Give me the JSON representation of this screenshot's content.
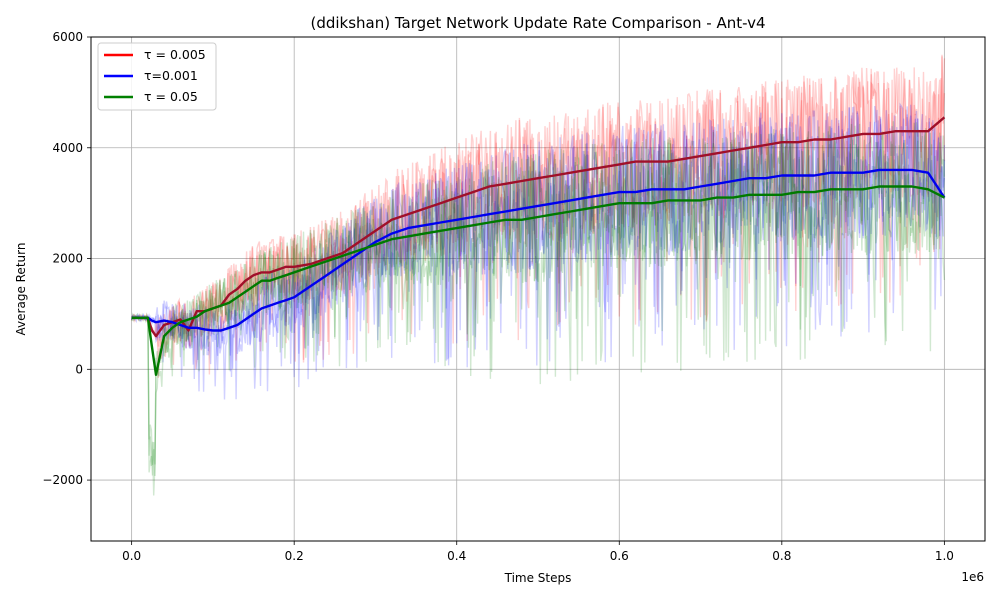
{
  "chart_data": {
    "type": "line",
    "title": "(ddikshan) Target Network Update Rate Comparison - Ant-v4",
    "xlabel": "Time Steps",
    "ylabel": "Average Return",
    "x_offset_label": "1e6",
    "xlim": [
      -0.05,
      1.05
    ],
    "ylim": [
      -3100,
      6000
    ],
    "x_ticks": [
      0.0,
      0.2,
      0.4,
      0.6,
      0.8,
      1.0
    ],
    "x_tick_labels": [
      "0.0",
      "0.2",
      "0.4",
      "0.6",
      "0.8",
      "1.0"
    ],
    "y_ticks": [
      -2000,
      0,
      2000,
      4000,
      6000
    ],
    "y_tick_labels": [
      "−2000",
      "0",
      "2000",
      "4000",
      "6000"
    ],
    "grid": true,
    "legend_position": "top-left",
    "x": [
      0.0,
      0.02,
      0.025,
      0.03,
      0.04,
      0.05,
      0.06,
      0.07,
      0.08,
      0.09,
      0.1,
      0.11,
      0.12,
      0.13,
      0.14,
      0.15,
      0.16,
      0.17,
      0.18,
      0.19,
      0.2,
      0.22,
      0.24,
      0.26,
      0.28,
      0.3,
      0.32,
      0.34,
      0.36,
      0.38,
      0.4,
      0.42,
      0.44,
      0.46,
      0.48,
      0.5,
      0.52,
      0.54,
      0.56,
      0.58,
      0.6,
      0.62,
      0.64,
      0.66,
      0.68,
      0.7,
      0.72,
      0.74,
      0.76,
      0.78,
      0.8,
      0.82,
      0.84,
      0.86,
      0.88,
      0.9,
      0.92,
      0.94,
      0.96,
      0.98,
      1.0
    ],
    "series": [
      {
        "name": "τ = 0.005",
        "color": "#ff0000",
        "mean_color": "#a0102a",
        "y": [
          930,
          930,
          700,
          600,
          800,
          850,
          900,
          700,
          1050,
          1050,
          1100,
          1150,
          1350,
          1450,
          1600,
          1700,
          1750,
          1750,
          1800,
          1850,
          1850,
          1900,
          2000,
          2100,
          2300,
          2500,
          2700,
          2800,
          2900,
          3000,
          3100,
          3200,
          3300,
          3350,
          3400,
          3450,
          3500,
          3550,
          3600,
          3650,
          3700,
          3750,
          3750,
          3750,
          3800,
          3850,
          3900,
          3950,
          4000,
          4050,
          4100,
          4100,
          4150,
          4150,
          4200,
          4250,
          4250,
          4300,
          4300,
          4300,
          4550
        ]
      },
      {
        "name": "τ=0.001",
        "color": "#0000ff",
        "mean_color": "#0000ee",
        "y": [
          930,
          930,
          880,
          850,
          880,
          850,
          800,
          750,
          750,
          720,
          700,
          700,
          750,
          800,
          900,
          1000,
          1100,
          1150,
          1200,
          1250,
          1300,
          1500,
          1700,
          1900,
          2100,
          2300,
          2450,
          2550,
          2600,
          2650,
          2700,
          2750,
          2800,
          2850,
          2900,
          2950,
          3000,
          3050,
          3100,
          3150,
          3200,
          3200,
          3250,
          3250,
          3250,
          3300,
          3350,
          3400,
          3450,
          3450,
          3500,
          3500,
          3500,
          3550,
          3550,
          3550,
          3600,
          3600,
          3600,
          3550,
          3100
        ]
      },
      {
        "name": "τ = 0.05",
        "color": "#008000",
        "mean_color": "#007a00",
        "y": [
          930,
          930,
          400,
          -100,
          600,
          750,
          850,
          900,
          950,
          1050,
          1100,
          1150,
          1200,
          1300,
          1400,
          1500,
          1600,
          1600,
          1650,
          1700,
          1750,
          1850,
          1950,
          2050,
          2150,
          2250,
          2350,
          2400,
          2450,
          2500,
          2550,
          2600,
          2650,
          2700,
          2700,
          2750,
          2800,
          2850,
          2900,
          2950,
          3000,
          3000,
          3000,
          3050,
          3050,
          3050,
          3100,
          3100,
          3150,
          3150,
          3150,
          3200,
          3200,
          3250,
          3250,
          3250,
          3300,
          3300,
          3300,
          3250,
          3100
        ]
      }
    ]
  }
}
